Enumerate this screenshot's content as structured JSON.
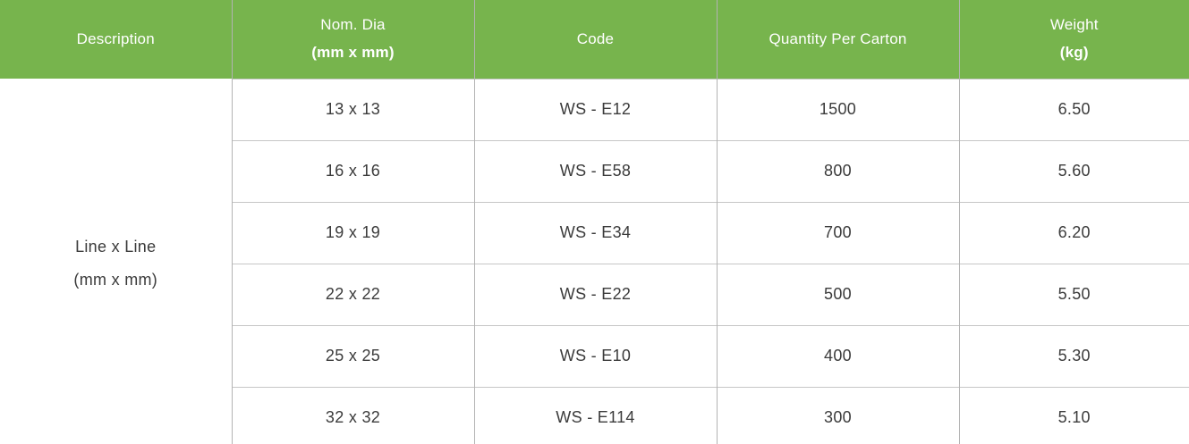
{
  "colors": {
    "header_bg": "#77b44d",
    "header_text": "#ffffff",
    "body_text": "#3b3b3b",
    "vertical_border": "#b3b3b3",
    "horizontal_border": "#c6c6c6"
  },
  "table": {
    "columns": [
      {
        "label": "Description",
        "sub": ""
      },
      {
        "label": "Nom. Dia",
        "sub": "(mm x mm)"
      },
      {
        "label": "Code",
        "sub": ""
      },
      {
        "label": "Quantity Per Carton",
        "sub": ""
      },
      {
        "label": "Weight",
        "sub": "(kg)"
      }
    ],
    "description_cell": {
      "line1": "Line x Line",
      "line2": "(mm x mm)"
    },
    "rows": [
      {
        "nom_dia": "13 x 13",
        "code": "WS - E12",
        "quantity": "1500",
        "weight": "6.50"
      },
      {
        "nom_dia": "16 x 16",
        "code": "WS - E58",
        "quantity": "800",
        "weight": "5.60"
      },
      {
        "nom_dia": "19 x 19",
        "code": "WS - E34",
        "quantity": "700",
        "weight": "6.20"
      },
      {
        "nom_dia": "22 x 22",
        "code": "WS - E22",
        "quantity": "500",
        "weight": "5.50"
      },
      {
        "nom_dia": "25 x 25",
        "code": "WS - E10",
        "quantity": "400",
        "weight": "5.30"
      },
      {
        "nom_dia": "32 x 32",
        "code": "WS - E114",
        "quantity": "300",
        "weight": "5.10"
      }
    ]
  }
}
